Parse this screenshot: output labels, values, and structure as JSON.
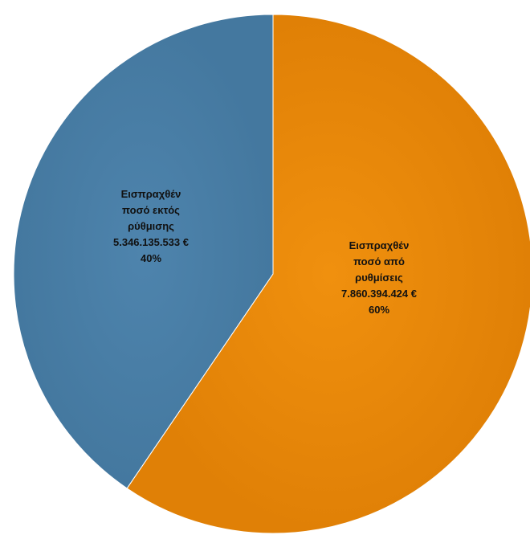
{
  "chart_data": {
    "type": "pie",
    "title": "",
    "slices": [
      {
        "label_lines": [
          "Εισπραχθέν",
          "ποσό από",
          "ρυθμίσεις"
        ],
        "value": 7860394424,
        "value_text": "7.860.394.424 €",
        "percent": 60,
        "percent_text": "60%",
        "color": "#e8870a"
      },
      {
        "label_lines": [
          "Εισπραχθέν",
          "ποσό εκτός",
          "ρύθμισης"
        ],
        "value": 5346135533,
        "value_text": "5.346.135.533 €",
        "percent": 40,
        "percent_text": "40%",
        "color": "#4a7fa8"
      }
    ],
    "start_angle": "12 o'clock",
    "direction": "clockwise",
    "legend": "none"
  }
}
